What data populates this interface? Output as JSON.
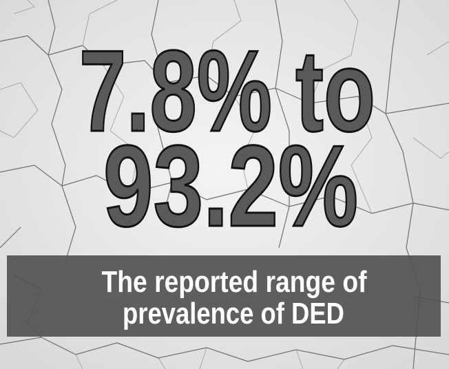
{
  "headline": {
    "lines": [
      "7.8% to",
      "93.2%"
    ]
  },
  "caption": {
    "lines": [
      "The reported range of",
      "prevalence of DED"
    ]
  }
}
